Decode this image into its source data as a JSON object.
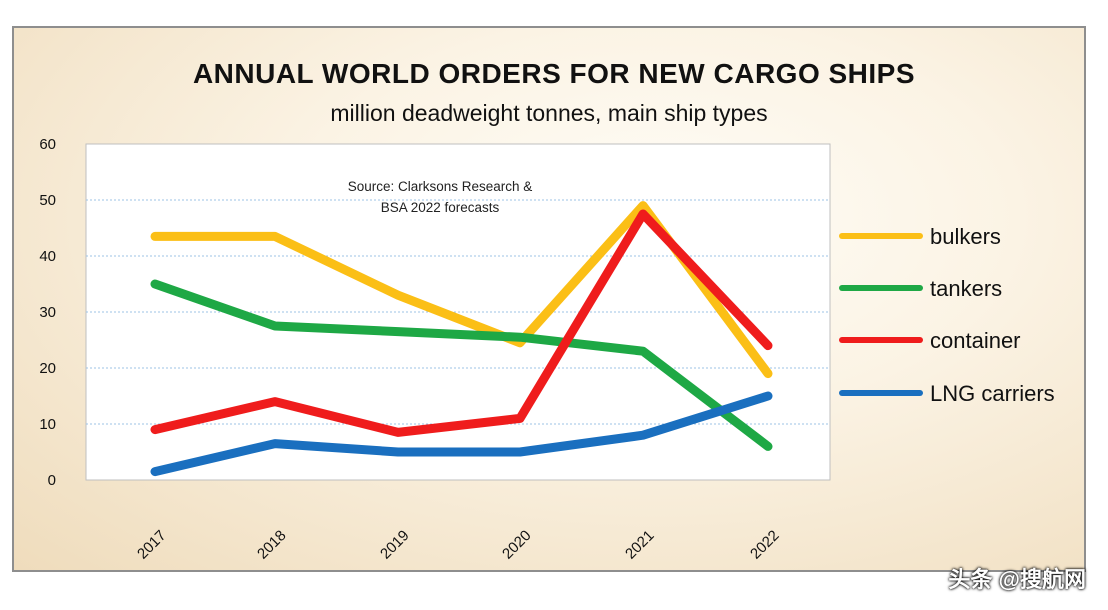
{
  "chart_data": {
    "type": "line",
    "title": "ANNUAL WORLD ORDERS FOR NEW CARGO SHIPS",
    "subtitle": "million deadweight tonnes, main ship types",
    "source_note": [
      "Source: Clarksons Research &",
      "BSA 2022 forecasts"
    ],
    "categories": [
      "2017",
      "2018",
      "2019",
      "2020",
      "2021",
      "2022"
    ],
    "ylim": [
      0,
      60
    ],
    "yticks": [
      "0",
      "10",
      "20",
      "30",
      "40",
      "50",
      "60"
    ],
    "grid": true,
    "legend_position": "right",
    "series": [
      {
        "name": "bulkers",
        "color": "#fbbf16",
        "values": [
          43.5,
          43.5,
          33,
          24.5,
          49,
          19
        ]
      },
      {
        "name": "tankers",
        "color": "#1ea845",
        "values": [
          35,
          27.5,
          26.5,
          25.5,
          23,
          6
        ]
      },
      {
        "name": "container",
        "color": "#ef1c1c",
        "values": [
          9,
          14,
          8.5,
          11,
          47.5,
          24
        ]
      },
      {
        "name": "LNG carriers",
        "color": "#1a6fbf",
        "values": [
          1.5,
          6.5,
          5,
          5,
          8,
          15
        ]
      }
    ]
  },
  "watermark": "头条 @搜航网"
}
